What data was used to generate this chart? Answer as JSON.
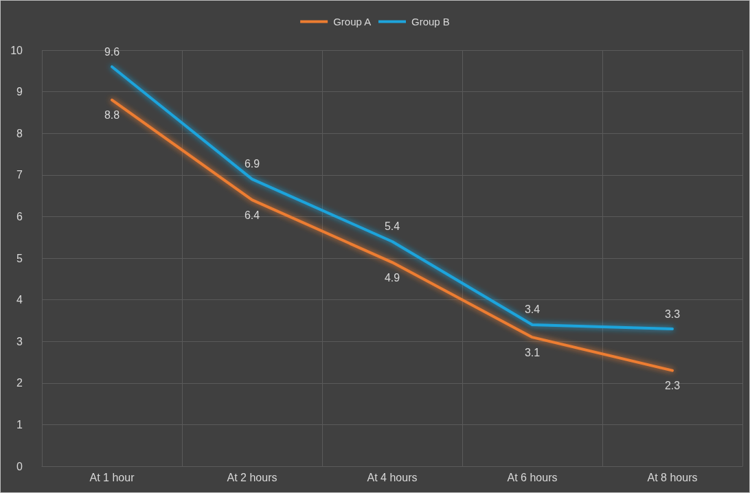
{
  "chart_data": {
    "type": "line",
    "categories": [
      "At 1 hour",
      "At 2 hours",
      "At 4 hours",
      "At 6 hours",
      "At 8 hours"
    ],
    "series": [
      {
        "name": "Group A",
        "color": "#ed7d31",
        "values": [
          8.8,
          6.4,
          4.9,
          3.1,
          2.3
        ]
      },
      {
        "name": "Group B",
        "color": "#1ea4dc",
        "values": [
          9.6,
          6.9,
          5.4,
          3.4,
          3.3
        ]
      }
    ],
    "ylim": [
      0,
      10
    ],
    "yticks": [
      0,
      1,
      2,
      3,
      4,
      5,
      6,
      7,
      8,
      9,
      10
    ],
    "grid": true,
    "legend": "top",
    "marker": "none",
    "line_style": "solid",
    "data_labels": true
  }
}
